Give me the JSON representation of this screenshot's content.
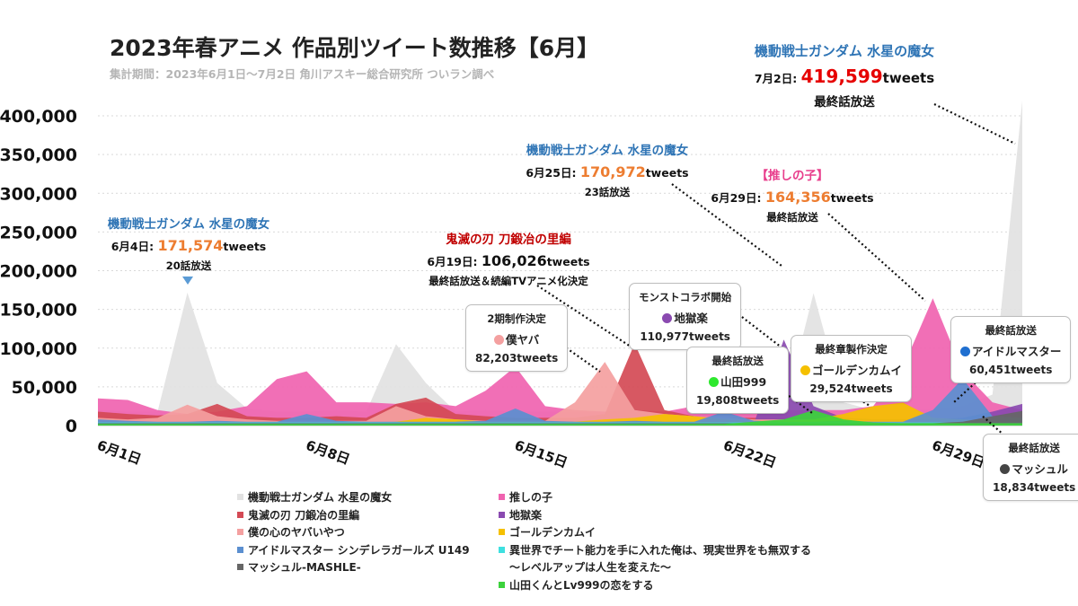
{
  "title": "2023年春アニメ 作品別ツイート数推移【6月】",
  "subtitle": "集計期間：2023年6月1日〜7月2日 角川アスキー総合研究所 ついラン調べ",
  "chart_data": {
    "type": "area",
    "ylim": [
      0,
      400000
    ],
    "y_ticks": [
      "0",
      "50,000",
      "100,000",
      "150,000",
      "200,000",
      "250,000",
      "300,000",
      "350,000",
      "400,000"
    ],
    "x_ticks": [
      {
        "day": 0,
        "label": "6月1日"
      },
      {
        "day": 7,
        "label": "6月8日"
      },
      {
        "day": 14,
        "label": "6月15日"
      },
      {
        "day": 21,
        "label": "6月22日"
      },
      {
        "day": 28,
        "label": "6月29日"
      }
    ],
    "days": [
      "6/1",
      "6/2",
      "6/3",
      "6/4",
      "6/5",
      "6/6",
      "6/7",
      "6/8",
      "6/9",
      "6/10",
      "6/11",
      "6/12",
      "6/13",
      "6/14",
      "6/15",
      "6/16",
      "6/17",
      "6/18",
      "6/19",
      "6/20",
      "6/21",
      "6/22",
      "6/23",
      "6/24",
      "6/25",
      "6/26",
      "6/27",
      "6/28",
      "6/29",
      "6/30",
      "7/1",
      "7/2"
    ],
    "series": [
      {
        "name": "機動戦士ガンダム 水星の魔女",
        "color": "#e2e2e2",
        "values": [
          20000,
          18000,
          18000,
          171574,
          55000,
          22000,
          18000,
          18000,
          20000,
          18000,
          105000,
          55000,
          18000,
          20000,
          18000,
          18000,
          18000,
          18000,
          20000,
          18000,
          18000,
          18000,
          20000,
          18000,
          170972,
          30000,
          20000,
          20000,
          20000,
          25000,
          40000,
          419599
        ]
      },
      {
        "name": "推しの子",
        "color": "#f063b0",
        "values": [
          35000,
          33000,
          20000,
          15000,
          18000,
          25000,
          60000,
          70000,
          30000,
          30000,
          28000,
          30000,
          25000,
          45000,
          76000,
          25000,
          20000,
          18000,
          20000,
          18000,
          25000,
          20000,
          22000,
          20000,
          20000,
          20000,
          25000,
          75000,
          164356,
          70000,
          30000,
          20000
        ]
      },
      {
        "name": "鬼滅の刃 刀鍛冶の里編",
        "color": "#d44a55",
        "values": [
          18000,
          15000,
          13000,
          15000,
          28000,
          12000,
          10000,
          10000,
          12000,
          10000,
          28000,
          36000,
          15000,
          12000,
          10000,
          10000,
          10000,
          15000,
          106026,
          20000,
          12000,
          10000,
          10000,
          10000,
          10000,
          10000,
          8000,
          8000,
          8000,
          8000,
          6000,
          5000
        ]
      },
      {
        "name": "地獄楽",
        "color": "#8a4ab0",
        "values": [
          3000,
          3000,
          3000,
          3000,
          3000,
          3000,
          3000,
          3000,
          3000,
          3000,
          3000,
          3000,
          3000,
          3000,
          3000,
          3000,
          3000,
          3000,
          3000,
          3000,
          3000,
          3000,
          3000,
          110977,
          25000,
          10000,
          8000,
          8000,
          8000,
          10000,
          18000,
          28000
        ]
      },
      {
        "name": "僕の心のヤバいやつ",
        "color": "#f4a0a0",
        "values": [
          10000,
          8000,
          10000,
          27000,
          12000,
          8000,
          6000,
          6000,
          6000,
          6000,
          25000,
          12000,
          8000,
          6000,
          6000,
          6000,
          30000,
          82203,
          20000,
          15000,
          12000,
          10000,
          8000,
          8000,
          8000,
          8000,
          6000,
          6000,
          6000,
          6000,
          5000,
          5000
        ]
      },
      {
        "name": "ゴールデンカムイ",
        "color": "#f5c000",
        "values": [
          3000,
          3000,
          3000,
          3000,
          3000,
          3000,
          3000,
          3000,
          3000,
          3000,
          5000,
          10000,
          8000,
          5000,
          5000,
          5000,
          5000,
          8000,
          10000,
          15000,
          12000,
          8000,
          6000,
          6000,
          8000,
          15000,
          25000,
          29524,
          10000,
          8000,
          6000,
          5000
        ]
      },
      {
        "name": "アイドルマスター シンデレラガールズ U149",
        "color": "#5b8fd0",
        "values": [
          8000,
          6000,
          5000,
          5000,
          6000,
          5000,
          5000,
          15000,
          6000,
          5000,
          5000,
          5000,
          5000,
          6000,
          22000,
          6000,
          5000,
          5000,
          6000,
          5000,
          5000,
          18000,
          6000,
          5000,
          5000,
          6000,
          5000,
          5000,
          20000,
          60451,
          12000,
          10000
        ]
      },
      {
        "name": "異世界でチート能力を手に入れた俺は、現実世界をも無双する",
        "continuation": "〜レベルアップは人生を変えた〜",
        "color": "#3ee0e0",
        "values": [
          4000,
          4000,
          4000,
          4000,
          4000,
          4000,
          4000,
          4000,
          4000,
          4000,
          4000,
          4000,
          4000,
          4000,
          4000,
          4000,
          4000,
          4000,
          4000,
          4000,
          4000,
          4000,
          4000,
          4000,
          4000,
          4000,
          4000,
          4000,
          4000,
          4000,
          4000,
          4000
        ]
      },
      {
        "name": "マッシュル-MASHLE-",
        "color": "#666666",
        "values": [
          3000,
          3000,
          3000,
          3000,
          3000,
          3000,
          3000,
          3000,
          3000,
          3000,
          3000,
          3000,
          3000,
          3000,
          3000,
          3000,
          3000,
          3000,
          3000,
          3000,
          3000,
          3000,
          3000,
          3000,
          3000,
          3000,
          3000,
          3000,
          3000,
          5000,
          12000,
          18834
        ]
      },
      {
        "name": "山田くんとLv999の恋をする",
        "color": "#3cd23c",
        "values": [
          2000,
          2000,
          2000,
          2000,
          2000,
          2000,
          2000,
          2000,
          2000,
          2000,
          2000,
          2000,
          2000,
          2000,
          2000,
          2000,
          2000,
          2000,
          2000,
          2000,
          2000,
          2000,
          5000,
          8000,
          19808,
          8000,
          4000,
          3000,
          3000,
          3000,
          3000,
          3000
        ]
      }
    ]
  },
  "callouts": {
    "gundam_top": {
      "title": "機動戦士ガンダム 水星の魔女",
      "date": "7月2日: ",
      "value": "419,599",
      "unit": "tweets",
      "note": "最終話放送"
    },
    "gundam_jun25": {
      "title": "機動戦士ガンダム 水星の魔女",
      "date": "6月25日: ",
      "value": "170,972",
      "unit": "tweets",
      "note": "23話放送"
    },
    "oshinoko": {
      "title": "【推しの子】",
      "date": "6月29日: ",
      "value": "164,356",
      "unit": "tweets",
      "note": "最終話放送"
    },
    "kimetsu": {
      "title": "鬼滅の刃 刀鍛冶の里編",
      "date": "6月19日: ",
      "value": "106,026",
      "unit": "tweets",
      "note": "最終話放送＆続編TVアニメ化決定"
    },
    "gundam_jun4": {
      "title": "機動戦士ガンダム 水星の魔女",
      "date": "6月4日: ",
      "value": "171,574",
      "unit": "tweets",
      "note": "20話放送"
    }
  },
  "boxes": {
    "bokuyaba": {
      "title": "2期制作決定",
      "name": "僕ヤバ",
      "value": "82,203tweets",
      "color": "#f4a0a0"
    },
    "jigokuraku": {
      "title": "モンストコラボ開始",
      "name": "地獄楽",
      "value": "110,977tweets",
      "color": "#8a4ab0"
    },
    "yamada": {
      "title": "最終話放送",
      "name": "山田999",
      "value": "19,808tweets",
      "color": "#2ee82e"
    },
    "kamuy": {
      "title": "最終章製作決定",
      "name": "ゴールデンカムイ",
      "value": "29,524tweets",
      "color": "#f5c000"
    },
    "imas": {
      "title": "最終話放送",
      "name": "アイドルマスター",
      "value": "60,451tweets",
      "color": "#1f6fd0"
    },
    "mashle": {
      "title": "最終話放送",
      "name": "マッシュル",
      "value": "18,834tweets",
      "color": "#444444"
    }
  }
}
